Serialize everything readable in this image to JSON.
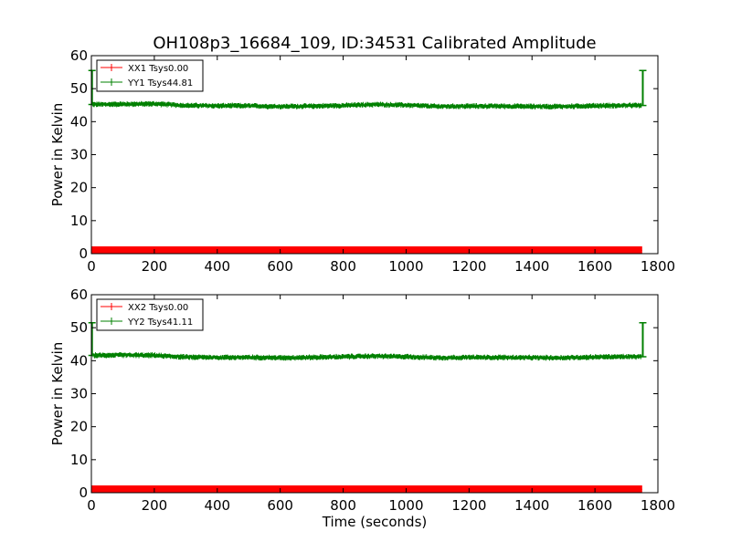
{
  "figure": {
    "title": "OH108p3_16684_109, ID:34531 Calibrated Amplitude",
    "xlabel": "Time (seconds)"
  },
  "chart_data": [
    {
      "type": "line",
      "ylabel": "Power in Kelvin",
      "xlabel": "",
      "xlim": [
        0,
        1800
      ],
      "ylim": [
        0,
        60
      ],
      "x_ticks": [
        0,
        200,
        400,
        600,
        800,
        1000,
        1200,
        1400,
        1600,
        1800
      ],
      "y_ticks": [
        0,
        10,
        20,
        30,
        40,
        50,
        60
      ],
      "grid": false,
      "legend_position": "top-left",
      "colors": {
        "XX1": "#ff0000",
        "YY1": "#008000"
      },
      "series": [
        {
          "name": "XX1 Tsys0.00",
          "color": "#ff0000",
          "x": [
            0,
            1750
          ],
          "values": [
            1.0,
            1.0
          ],
          "error_band": 1.2
        },
        {
          "name": "YY1 Tsys44.81",
          "color": "#008000",
          "x": [
            0,
            100,
            200,
            300,
            400,
            500,
            600,
            700,
            800,
            900,
            1000,
            1100,
            1200,
            1300,
            1400,
            1500,
            1600,
            1700,
            1750
          ],
          "values": [
            45.2,
            45.3,
            45.4,
            44.9,
            44.8,
            44.8,
            44.6,
            44.7,
            44.9,
            45.2,
            45.0,
            44.6,
            44.7,
            44.7,
            44.6,
            44.6,
            44.8,
            44.9,
            44.9
          ],
          "error_band": 0.6,
          "spikes": [
            {
              "x": 2,
              "y": 55.5
            },
            {
              "x": 1752,
              "y": 55.5
            }
          ]
        }
      ]
    },
    {
      "type": "line",
      "ylabel": "Power in Kelvin",
      "xlabel": "Time (seconds)",
      "xlim": [
        0,
        1800
      ],
      "ylim": [
        0,
        60
      ],
      "x_ticks": [
        0,
        200,
        400,
        600,
        800,
        1000,
        1200,
        1400,
        1600,
        1800
      ],
      "y_ticks": [
        0,
        10,
        20,
        30,
        40,
        50,
        60
      ],
      "grid": false,
      "legend_position": "top-left",
      "colors": {
        "XX2": "#ff0000",
        "YY2": "#008000"
      },
      "series": [
        {
          "name": "XX2 Tsys0.00",
          "color": "#ff0000",
          "x": [
            0,
            1750
          ],
          "values": [
            1.0,
            1.0
          ],
          "error_band": 1.2
        },
        {
          "name": "YY2 Tsys41.11",
          "color": "#008000",
          "x": [
            0,
            100,
            200,
            300,
            400,
            500,
            600,
            700,
            800,
            900,
            1000,
            1100,
            1200,
            1300,
            1400,
            1500,
            1600,
            1700,
            1750
          ],
          "values": [
            41.6,
            41.7,
            41.6,
            41.1,
            41.0,
            41.0,
            40.9,
            41.0,
            41.2,
            41.4,
            41.2,
            40.9,
            41.0,
            41.0,
            40.9,
            40.9,
            41.1,
            41.2,
            41.2
          ],
          "error_band": 0.6,
          "spikes": [
            {
              "x": 2,
              "y": 51.5
            },
            {
              "x": 1752,
              "y": 51.5
            }
          ]
        }
      ]
    }
  ]
}
